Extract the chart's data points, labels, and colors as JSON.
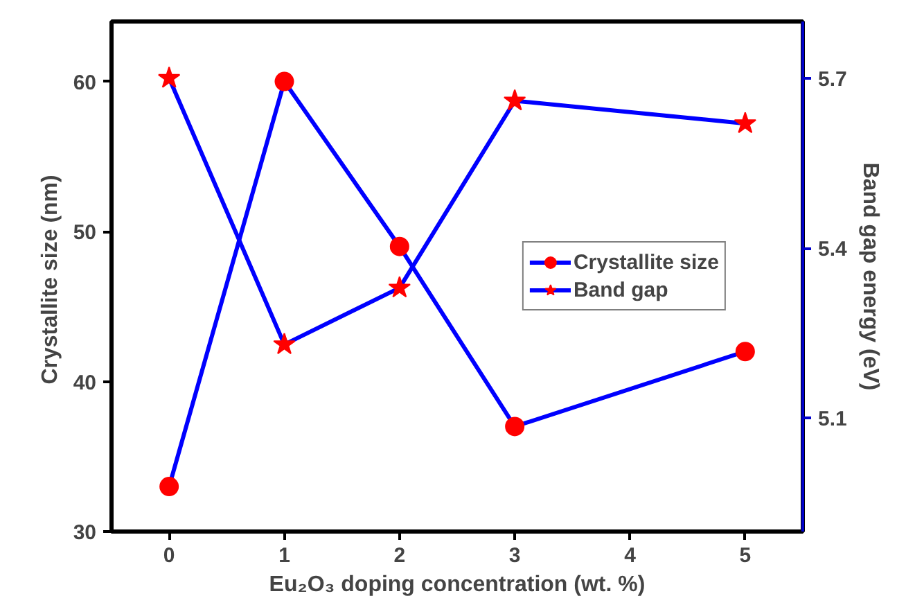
{
  "chart_data": {
    "type": "line",
    "xlabel": "Eu₂O₃ doping concentration (wt. %)",
    "ylabel": "Crystallite size  (nm)",
    "y2label": "Band gap energy (eV)",
    "x": [
      0,
      1,
      2,
      3,
      5
    ],
    "xlim": [
      -0.5,
      5.5
    ],
    "xticks": [
      0,
      1,
      2,
      3,
      4,
      5
    ],
    "ylim": [
      30,
      64
    ],
    "yticks": [
      30,
      40,
      50,
      60
    ],
    "y2lim": [
      4.9,
      5.8
    ],
    "y2ticks": [
      5.1,
      5.4,
      5.7
    ],
    "series": [
      {
        "name": "Crystallite size",
        "color": "#0000ff",
        "marker": "circle",
        "values": [
          33,
          60,
          49,
          37,
          42
        ]
      },
      {
        "name": "Band gap",
        "color": "#0000ff",
        "marker": "star",
        "axis": "y2",
        "values": [
          5.7,
          5.23,
          5.33,
          5.66,
          5.62
        ]
      }
    ],
    "legend": "right",
    "grid": false
  }
}
